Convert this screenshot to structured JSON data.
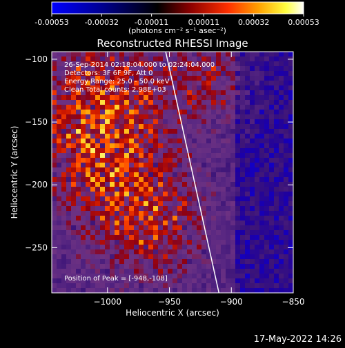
{
  "colorbar": {
    "tick_labels": [
      "-0.00053",
      "-0.00032",
      "-0.00011",
      "0.00011",
      "0.00032",
      "0.00053"
    ],
    "unit_label": "(photons cm⁻² s⁻¹ asec⁻²)",
    "range": [
      -0.00053,
      0.00053
    ],
    "colors": [
      "#0000ff",
      "#000080",
      "#000000",
      "#8b0000",
      "#ff4000",
      "#ffa000",
      "#ffff40",
      "#ffffff"
    ]
  },
  "title": "Reconstructed RHESSI Image",
  "annotations": {
    "line1": "26-Sep-2014 02:18:04.000 to 02:24:04.000",
    "line2": "Detectors: 3F 6F 9F, Att 0",
    "line3": "Energy Range: 25.0 - 50.0 keV",
    "line4": "Clean    Total counts: 2.98E+03",
    "peak": "Position of Peak = [-948,-108]"
  },
  "footer": {
    "date": "17-May-2022 14:26"
  },
  "chart_data": {
    "type": "heatmap",
    "title": "Reconstructed RHESSI Image",
    "xlabel": "Heliocentric X (arcsec)",
    "ylabel": "Heliocentric Y (arcsec)",
    "xlim": [
      -1045,
      -850
    ],
    "ylim": [
      -286,
      -94
    ],
    "x_ticks": [
      -1000,
      -950,
      -900,
      -850
    ],
    "y_ticks": [
      -100,
      -150,
      -200,
      -250
    ],
    "x_tick_labels": [
      "−1000",
      "−950",
      "−900",
      "−850"
    ],
    "y_tick_labels": [
      "−100",
      "−150",
      "−200",
      "−250"
    ],
    "peak_position": [
      -948,
      -108
    ],
    "limb_line": [
      [
        -953,
        -94
      ],
      [
        -910,
        -286
      ]
    ],
    "grid": false
  }
}
